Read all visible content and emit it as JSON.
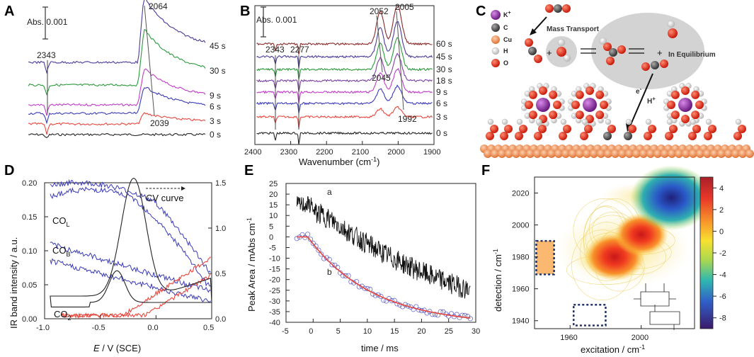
{
  "panel_labels": [
    "A",
    "B",
    "C",
    "D",
    "E",
    "F"
  ],
  "colors": {
    "black": "#222222",
    "red": "#e8463c",
    "blue": "#3a3ab8",
    "purple": "#7a3fa0",
    "magenta": "#c03cc8",
    "green": "#2a9a3a",
    "indigo": "#4a3a9a",
    "darkred": "#8a2a2a",
    "cu": "#f4a070",
    "oxygen": "#e83020",
    "carbon": "#555555",
    "k": "#9a3ab0"
  },
  "chart_data": [
    {
      "panel": "A",
      "type": "line",
      "scale_label": "Abs. 0.001",
      "series": [
        {
          "name": "0 s",
          "color": "#222222"
        },
        {
          "name": "3 s",
          "color": "#e8463c"
        },
        {
          "name": "6 s",
          "color": "#3a3ab8"
        },
        {
          "name": "9 s",
          "color": "#c03cc8"
        },
        {
          "name": "30 s",
          "color": "#2a9a3a"
        },
        {
          "name": "45 s",
          "color": "#4a3a9a"
        }
      ],
      "annotations": [
        "2343",
        "2064",
        "2039"
      ]
    },
    {
      "panel": "B",
      "type": "line",
      "scale_label": "Abs. 0.001",
      "xlabel": "Wavenumber (cm",
      "xlabel_exp": "-1",
      "xlabel_close": ")",
      "xlim": [
        2400,
        1900
      ],
      "xticks": [
        "2400",
        "2300",
        "2200",
        "2100",
        "2000",
        "1900"
      ],
      "series": [
        {
          "name": "0 s",
          "color": "#222222"
        },
        {
          "name": "3 s",
          "color": "#e8463c"
        },
        {
          "name": "6 s",
          "color": "#3a3ab8"
        },
        {
          "name": "9 s",
          "color": "#c03cc8"
        },
        {
          "name": "18 s",
          "color": "#7a3fa0"
        },
        {
          "name": "30 s",
          "color": "#2a9a3a"
        },
        {
          "name": "45 s",
          "color": "#4a3a9a"
        },
        {
          "name": "60 s",
          "color": "#8a2a2a"
        }
      ],
      "annotations": [
        "2343",
        "2277",
        "2052",
        "2005",
        "2045",
        "1992"
      ]
    },
    {
      "panel": "D",
      "type": "line",
      "xlabel_e": "E",
      "xlabel": " / V (SCE)",
      "ylabel": "IR band intensity / a.u.",
      "xlim": [
        -1.0,
        0.5
      ],
      "ylim_left": [
        0,
        0.2
      ],
      "ylim_right": [
        0,
        1.5
      ],
      "xticks": [
        "-1.0",
        "-0.5",
        "0.0",
        "0.5"
      ],
      "yticks_left": [
        "0.00",
        "0.05",
        "0.10",
        "0.15",
        "0.20"
      ],
      "yticks_right": [
        "0.0",
        "0.5",
        "1.0",
        "1.5"
      ],
      "cv_label": "CV curve",
      "series_labels": {
        "col": "CO",
        "col_sub": "L",
        "cob": "CO",
        "cob_sub": "B",
        "co2": "CO",
        "co2_sub": "2"
      }
    },
    {
      "panel": "E",
      "type": "scatter",
      "xlabel": "time / ms",
      "ylabel": "Peak Area / mAbs cm",
      "ylabel_exp": "-1",
      "xlim": [
        -5,
        30
      ],
      "ylim": [
        -40,
        25
      ],
      "xticks": [
        "-5",
        "0",
        "5",
        "10",
        "15",
        "20",
        "25",
        "30"
      ],
      "yticks": [
        "-40",
        "-35",
        "-30",
        "-25",
        "-20",
        "-15",
        "-10",
        "-5",
        "0",
        "5",
        "10",
        "15",
        "20",
        "25"
      ],
      "series": [
        {
          "name": "a",
          "color": "#111111",
          "start": 15,
          "end": -25,
          "tau": 30
        },
        {
          "name": "b",
          "color": "#3a3ab8",
          "start": 0,
          "end": -38,
          "tau": 12,
          "fit_color": "#e8463c"
        }
      ]
    },
    {
      "panel": "F",
      "type": "heatmap",
      "xlabel": "excitation / cm",
      "xlabel_exp": "-1",
      "ylabel": "detection / cm",
      "ylabel_exp": "-1",
      "xlim": [
        1940,
        2030
      ],
      "ylim": [
        1935,
        2030
      ],
      "xticks": [
        "1960",
        "2000"
      ],
      "yticks": [
        "1940",
        "1960",
        "1980",
        "2000",
        "2020"
      ],
      "colorbar": {
        "ticks": [
          "4",
          "2",
          "0",
          "-2",
          "-4",
          "-6",
          "-8"
        ],
        "range": [
          -9,
          5
        ]
      },
      "peaks": [
        {
          "x": 1985,
          "y": 1980,
          "value": 5
        },
        {
          "x": 2000,
          "y": 1994,
          "value": 4
        },
        {
          "x": 2017,
          "y": 2017,
          "value": -8
        }
      ]
    }
  ],
  "diagram_c": {
    "legend": [
      "K",
      "C",
      "Cu",
      "H",
      "O"
    ],
    "k_sup": "+",
    "texts": {
      "mass_transport": "Mass Transport",
      "equilibrium": "In Equilibrium",
      "electron": "e",
      "electron_sup": "-",
      "proton": "H",
      "proton_sup": "+"
    }
  }
}
